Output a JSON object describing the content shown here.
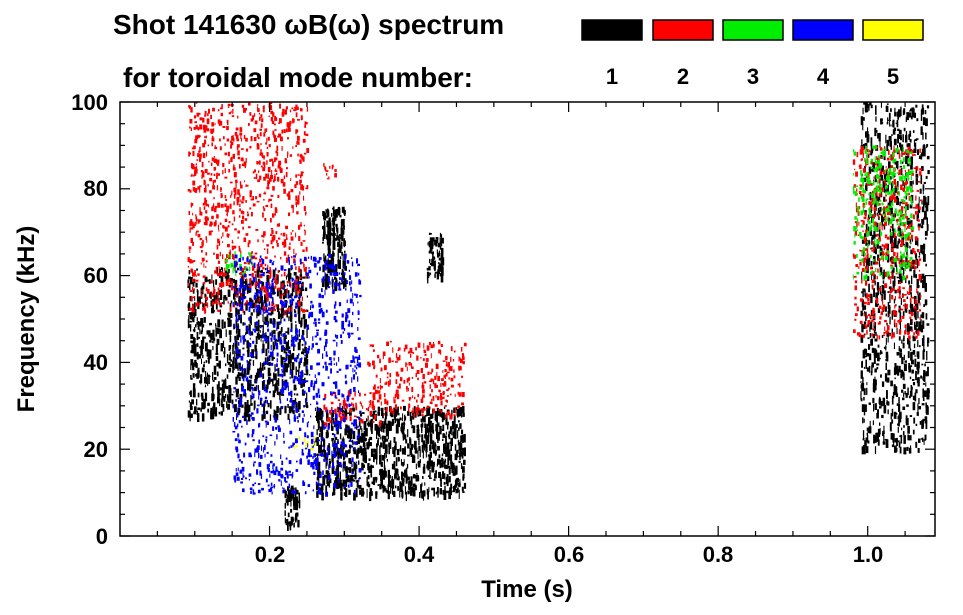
{
  "chart_data": {
    "type": "spectrogram",
    "title_line1": "Shot 141630 ωB(ω) spectrum",
    "title_line2": "for toroidal mode number:",
    "xlabel": "Time (s)",
    "ylabel": "Frequency (kHz)",
    "xlim": [
      0.0,
      1.09
    ],
    "ylim": [
      0,
      100
    ],
    "x_ticks": [
      {
        "value": 0.2,
        "label": "0.2"
      },
      {
        "value": 0.4,
        "label": "0.4"
      },
      {
        "value": 0.6,
        "label": "0.6"
      },
      {
        "value": 0.8,
        "label": "0.8"
      },
      {
        "value": 1.0,
        "label": "1.0"
      }
    ],
    "y_ticks": [
      {
        "value": 0,
        "label": "0"
      },
      {
        "value": 20,
        "label": "20"
      },
      {
        "value": 40,
        "label": "40"
      },
      {
        "value": 60,
        "label": "60"
      },
      {
        "value": 80,
        "label": "80"
      },
      {
        "value": 100,
        "label": "100"
      }
    ],
    "legend": [
      {
        "mode": "1",
        "color": "#000000"
      },
      {
        "mode": "2",
        "color": "#ff0000"
      },
      {
        "mode": "3",
        "color": "#00ee00"
      },
      {
        "mode": "4",
        "color": "#0000ff"
      },
      {
        "mode": "5",
        "color": "#ffff00"
      }
    ],
    "mode_features": [
      {
        "mode": "1",
        "name": "broadband-activity",
        "t": [
          0.09,
          0.25
        ],
        "f": [
          28,
          62
        ]
      },
      {
        "mode": "1",
        "name": "burst",
        "t": [
          0.27,
          0.3
        ],
        "f": [
          58,
          76
        ]
      },
      {
        "mode": "1",
        "name": "burst",
        "t": [
          0.41,
          0.43
        ],
        "f": [
          60,
          70
        ]
      },
      {
        "mode": "1",
        "name": "low-freq-activity",
        "t": [
          0.26,
          0.46
        ],
        "f": [
          10,
          30
        ]
      },
      {
        "mode": "1",
        "name": "low-freq-burst",
        "t": [
          0.22,
          0.24
        ],
        "f": [
          3,
          12
        ]
      },
      {
        "mode": "1",
        "name": "late-activity",
        "t": [
          0.99,
          1.08
        ],
        "f": [
          20,
          100
        ]
      },
      {
        "mode": "2",
        "name": "chirp",
        "t": [
          0.09,
          0.25
        ],
        "f": [
          52,
          100
        ]
      },
      {
        "mode": "2",
        "name": "chirp",
        "t": [
          0.27,
          0.29
        ],
        "f": [
          82,
          86
        ]
      },
      {
        "mode": "2",
        "name": "down-chirp",
        "t": [
          0.27,
          0.35
        ],
        "f": [
          26,
          34
        ]
      },
      {
        "mode": "2",
        "name": "down-chirp",
        "t": [
          0.33,
          0.46
        ],
        "f": [
          28,
          45
        ]
      },
      {
        "mode": "2",
        "name": "late-activity",
        "t": [
          0.98,
          1.07
        ],
        "f": [
          46,
          90
        ]
      },
      {
        "mode": "3",
        "name": "island",
        "t": [
          0.14,
          0.18
        ],
        "f": [
          60,
          66
        ]
      },
      {
        "mode": "3",
        "name": "late-activity",
        "t": [
          0.98,
          1.06
        ],
        "f": [
          60,
          90
        ]
      },
      {
        "mode": "4",
        "name": "sparse",
        "t": [
          0.15,
          0.32
        ],
        "f": [
          10,
          65
        ]
      },
      {
        "mode": "5",
        "name": "island",
        "t": [
          0.23,
          0.26
        ],
        "f": [
          20,
          23
        ]
      }
    ]
  }
}
